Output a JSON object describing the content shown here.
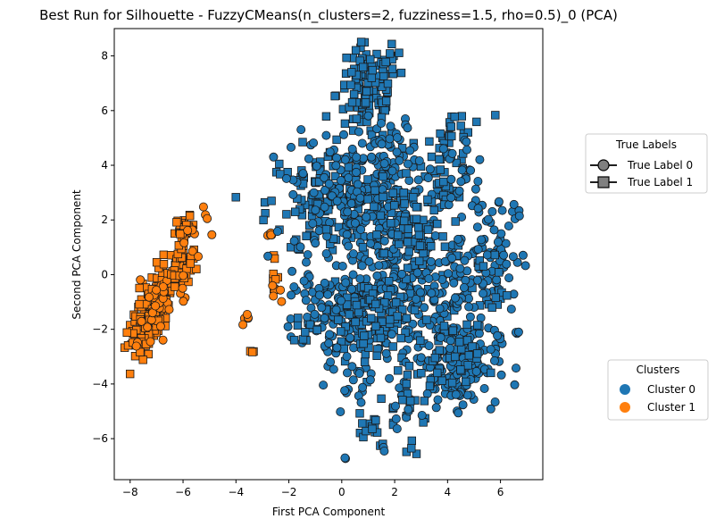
{
  "chart_data": {
    "type": "scatter",
    "title": "Best Run for Silhouette - FuzzyCMeans(n_clusters=2, fuzziness=1.5, rho=0.5)_0 (PCA)",
    "xlabel": "First PCA Component",
    "ylabel": "Second PCA Component",
    "xlim": [
      -8.6,
      7.6
    ],
    "ylim": [
      -7.5,
      9.0
    ],
    "xticks": [
      -8,
      -6,
      -4,
      -2,
      0,
      2,
      4,
      6
    ],
    "yticks": [
      -6,
      -4,
      -2,
      0,
      2,
      4,
      6,
      8
    ],
    "xtick_labels": [
      "−8",
      "−6",
      "−4",
      "−2",
      "0",
      "2",
      "4",
      "6"
    ],
    "ytick_labels": [
      "−6",
      "−4",
      "−2",
      "0",
      "2",
      "4",
      "6",
      "8"
    ],
    "grid": false,
    "cluster_colors": [
      "#1f77b4",
      "#ff7f0e"
    ],
    "legend_true_labels": {
      "title": "True Labels",
      "placement": "outside-right-upper",
      "items": [
        {
          "label": "True Label 0",
          "marker": "circle"
        },
        {
          "label": "True Label 1",
          "marker": "square"
        }
      ]
    },
    "legend_clusters": {
      "title": "Clusters",
      "placement": "outside-right-lower",
      "items": [
        {
          "label": "Cluster 0",
          "color": "#1f77b4"
        },
        {
          "label": "Cluster 1",
          "color": "#ff7f0e"
        }
      ]
    },
    "series": [
      {
        "cluster": 1,
        "regions": [
          {
            "label": 1,
            "cx": -7.2,
            "cy": -1.4,
            "sx": 0.32,
            "sy": 0.85,
            "tilt": 0.9,
            "n": 170
          },
          {
            "label": 0,
            "cx": -7.0,
            "cy": -1.0,
            "sx": 0.25,
            "sy": 0.7,
            "tilt": 0.9,
            "n": 30
          },
          {
            "label": 1,
            "cx": -6.1,
            "cy": 0.3,
            "sx": 0.22,
            "sy": 0.35,
            "tilt": 0.3,
            "n": 50
          },
          {
            "label": 0,
            "cx": -5.95,
            "cy": -0.55,
            "sx": 0.1,
            "sy": 0.3,
            "tilt": 0.0,
            "n": 5
          },
          {
            "label": 1,
            "cx": -5.95,
            "cy": 1.6,
            "sx": 0.18,
            "sy": 0.25,
            "tilt": 0.2,
            "n": 35
          },
          {
            "label": 0,
            "cx": -5.6,
            "cy": 1.2,
            "sx": 0.25,
            "sy": 0.3,
            "tilt": 0.0,
            "n": 6
          },
          {
            "label": 0,
            "cx": -5.1,
            "cy": 1.9,
            "sx": 0.2,
            "sy": 0.3,
            "tilt": 0.0,
            "n": 4
          },
          {
            "label": 0,
            "cx": -2.7,
            "cy": 1.45,
            "sx": 0.06,
            "sy": 0.06,
            "tilt": 0.0,
            "n": 6
          },
          {
            "label": 1,
            "cx": -2.6,
            "cy": 0.0,
            "sx": 0.1,
            "sy": 0.3,
            "tilt": 0.0,
            "n": 8
          },
          {
            "label": 0,
            "cx": -2.5,
            "cy": -0.6,
            "sx": 0.1,
            "sy": 0.15,
            "tilt": 0.0,
            "n": 4
          },
          {
            "label": 0,
            "cx": -3.6,
            "cy": -1.65,
            "sx": 0.1,
            "sy": 0.1,
            "tilt": 0.0,
            "n": 5
          },
          {
            "label": 1,
            "cx": -3.4,
            "cy": -2.9,
            "sx": 0.1,
            "sy": 0.1,
            "tilt": 0.0,
            "n": 3
          }
        ]
      },
      {
        "cluster": 0,
        "regions": [
          {
            "label": 1,
            "cx": 1.0,
            "cy": 6.6,
            "sx": 0.6,
            "sy": 0.9,
            "tilt": 0.0,
            "n": 110
          },
          {
            "label": 1,
            "cx": 1.7,
            "cy": 7.7,
            "sx": 0.6,
            "sy": 0.3,
            "tilt": 0.0,
            "n": 15
          },
          {
            "label": 1,
            "cx": 4.6,
            "cy": 5.5,
            "sx": 0.5,
            "sy": 0.5,
            "tilt": 0.0,
            "n": 10
          },
          {
            "label": 1,
            "cx": 4.0,
            "cy": 4.1,
            "sx": 0.45,
            "sy": 0.7,
            "tilt": 0.0,
            "n": 45
          },
          {
            "label": 0,
            "cx": 4.5,
            "cy": 3.8,
            "sx": 0.5,
            "sy": 0.7,
            "tilt": 0.0,
            "n": 25
          },
          {
            "label": 1,
            "cx": -0.2,
            "cy": 2.6,
            "sx": 1.3,
            "sy": 1.0,
            "tilt": -0.2,
            "n": 170
          },
          {
            "label": 0,
            "cx": 0.3,
            "cy": 3.0,
            "sx": 1.1,
            "sy": 1.2,
            "tilt": 0.0,
            "n": 150
          },
          {
            "label": 0,
            "cx": 1.9,
            "cy": 4.2,
            "sx": 0.6,
            "sy": 0.7,
            "tilt": 0.0,
            "n": 40
          },
          {
            "label": 0,
            "cx": 2.3,
            "cy": 0.6,
            "sx": 1.1,
            "sy": 1.4,
            "tilt": 0.0,
            "n": 140
          },
          {
            "label": 1,
            "cx": 2.8,
            "cy": 1.5,
            "sx": 0.9,
            "sy": 1.0,
            "tilt": 0.0,
            "n": 80
          },
          {
            "label": 0,
            "cx": 0.7,
            "cy": -1.4,
            "sx": 1.1,
            "sy": 0.9,
            "tilt": 0.0,
            "n": 150
          },
          {
            "label": 1,
            "cx": 1.3,
            "cy": -1.8,
            "sx": 1.0,
            "sy": 1.0,
            "tilt": 0.0,
            "n": 100
          },
          {
            "label": 0,
            "cx": 4.3,
            "cy": -3.2,
            "sx": 0.8,
            "sy": 0.8,
            "tilt": 0.0,
            "n": 160
          },
          {
            "label": 1,
            "cx": 3.8,
            "cy": -3.3,
            "sx": 0.7,
            "sy": 0.7,
            "tilt": 0.0,
            "n": 40
          },
          {
            "label": 0,
            "cx": 5.6,
            "cy": 0.8,
            "sx": 0.6,
            "sy": 1.1,
            "tilt": 0.0,
            "n": 70
          },
          {
            "label": 1,
            "cx": 5.2,
            "cy": -0.6,
            "sx": 0.6,
            "sy": 0.7,
            "tilt": 0.0,
            "n": 25
          },
          {
            "label": 0,
            "cx": 6.6,
            "cy": 2.4,
            "sx": 0.15,
            "sy": 0.15,
            "tilt": 0.0,
            "n": 4
          },
          {
            "label": 0,
            "cx": 6.65,
            "cy": -2.15,
            "sx": 0.08,
            "sy": 0.08,
            "tilt": 0.0,
            "n": 3
          },
          {
            "label": 0,
            "cx": 4.1,
            "cy": -0.4,
            "sx": 0.7,
            "sy": 0.8,
            "tilt": 0.0,
            "n": 50
          },
          {
            "label": 1,
            "cx": 1.0,
            "cy": -5.5,
            "sx": 0.4,
            "sy": 0.4,
            "tilt": 0.0,
            "n": 15
          },
          {
            "label": 0,
            "cx": 0.4,
            "cy": -4.0,
            "sx": 0.4,
            "sy": 0.6,
            "tilt": 0.0,
            "n": 15
          },
          {
            "label": 1,
            "cx": 2.5,
            "cy": -4.8,
            "sx": 0.5,
            "sy": 0.5,
            "tilt": 0.0,
            "n": 15
          },
          {
            "label": 0,
            "cx": 2.6,
            "cy": -5.2,
            "sx": 0.3,
            "sy": 0.2,
            "tilt": 0.0,
            "n": 8
          },
          {
            "label": 1,
            "cx": 2.7,
            "cy": -6.5,
            "sx": 0.2,
            "sy": 0.1,
            "tilt": 0.0,
            "n": 3
          },
          {
            "label": 0,
            "cx": 1.6,
            "cy": -6.4,
            "sx": 0.1,
            "sy": 0.1,
            "tilt": 0.0,
            "n": 2
          },
          {
            "label": 0,
            "cx": 0.15,
            "cy": -6.7,
            "sx": 0.05,
            "sy": 0.05,
            "tilt": 0.0,
            "n": 2
          },
          {
            "label": 1,
            "cx": -1.8,
            "cy": 2.2,
            "sx": 0.2,
            "sy": 0.15,
            "tilt": 0.0,
            "n": 3
          },
          {
            "label": 0,
            "cx": -1.1,
            "cy": -0.8,
            "sx": 0.5,
            "sy": 0.7,
            "tilt": 0.0,
            "n": 30
          },
          {
            "label": 1,
            "cx": -1.4,
            "cy": -1.9,
            "sx": 0.3,
            "sy": 0.3,
            "tilt": 0.0,
            "n": 8
          },
          {
            "label": 0,
            "cx": -0.5,
            "cy": -2.7,
            "sx": 0.3,
            "sy": 0.3,
            "tilt": 0.0,
            "n": 6
          }
        ]
      }
    ]
  }
}
